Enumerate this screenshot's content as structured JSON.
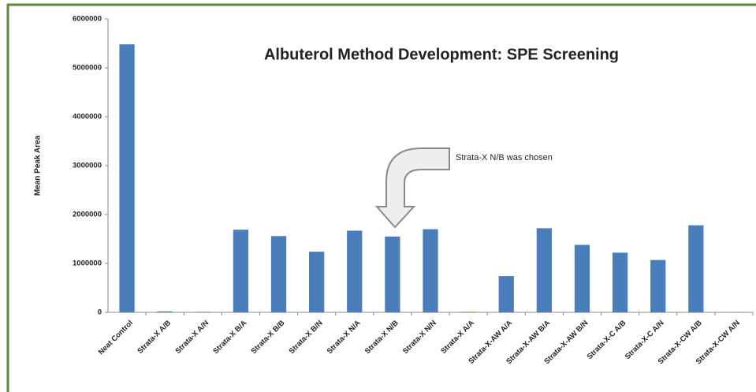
{
  "chart_data": {
    "type": "bar",
    "title": "Albuterol Method Development: SPE Screening",
    "y_label": "Mean Peak Area",
    "annotation": "Strata-X N/B was chosen",
    "categories": [
      "Neat Control",
      "Strata-X A/B",
      "Strata-X A/N",
      "Strata-X B/A",
      "Strata-X B/B",
      "Strata-X B/N",
      "Strata-X N/A",
      "Strata-X N/B",
      "Strata-X N/N",
      "Strata-X A/A",
      "Strata-X-AW A/A",
      "Strata-X-AW B/A",
      "Strata-X-AW B/N",
      "Strata-X-C A/B",
      "Strata-X-C A/N",
      "Strata-X-CW A/B",
      "Strata-X-CW A/N"
    ],
    "values": [
      5480000,
      20000,
      10000,
      1690000,
      1560000,
      1240000,
      1670000,
      1550000,
      1700000,
      10000,
      740000,
      1720000,
      1380000,
      1220000,
      1070000,
      1780000,
      5000
    ],
    "color": "#4a7ebb",
    "ylim": [
      0,
      6000000
    ],
    "yticks": [
      0,
      1000000,
      2000000,
      3000000,
      4000000,
      5000000,
      6000000
    ],
    "grid": false
  }
}
